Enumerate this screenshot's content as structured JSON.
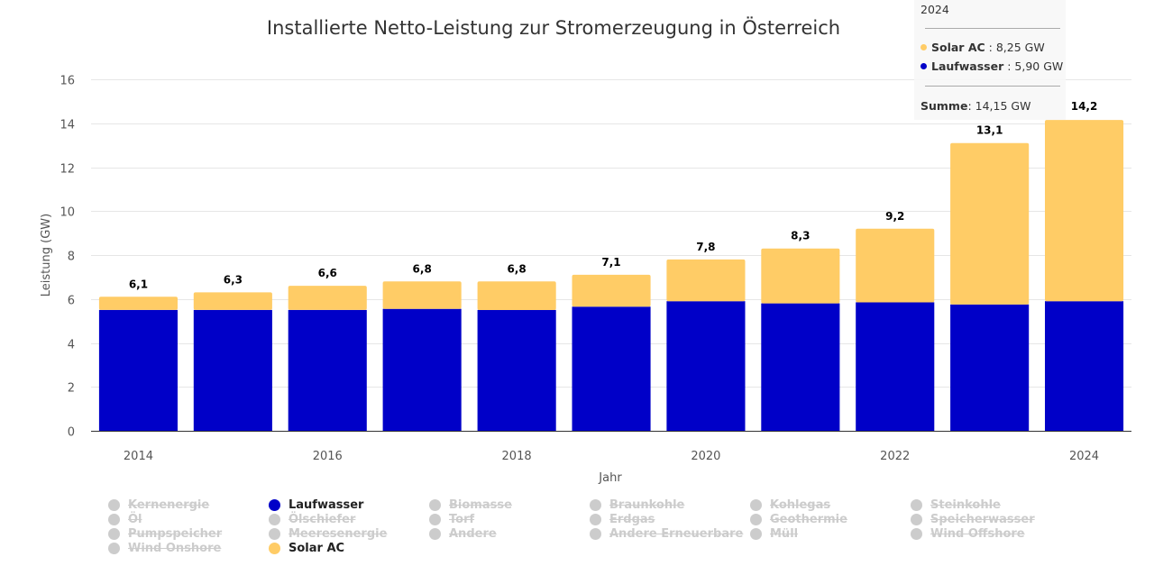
{
  "chart_data": {
    "type": "bar",
    "stacked": true,
    "title": "Installierte Netto-Leistung zur Stromerzeugung in Österreich",
    "xlabel": "Jahr",
    "ylabel": "Leistung (GW)",
    "ylim": [
      0,
      16
    ],
    "yticks": [
      "0",
      "2",
      "4",
      "6",
      "8",
      "10",
      "12",
      "14",
      "16"
    ],
    "ytick_values": [
      0,
      2,
      4,
      6,
      8,
      10,
      12,
      14,
      16
    ],
    "categories": [
      "2014",
      "2015",
      "2016",
      "2017",
      "2018",
      "2019",
      "2020",
      "2021",
      "2022",
      "2023",
      "2024"
    ],
    "xtick_labels": [
      "2014",
      "",
      "2016",
      "",
      "2018",
      "",
      "2020",
      "",
      "2022",
      "",
      "2024"
    ],
    "grid": true,
    "series": [
      {
        "name": "Laufwasser",
        "color": "#0000c8",
        "values": [
          5.5,
          5.5,
          5.5,
          5.55,
          5.5,
          5.65,
          5.9,
          5.8,
          5.85,
          5.75,
          5.9
        ]
      },
      {
        "name": "Solar AC",
        "color": "#ffcc66",
        "values": [
          0.6,
          0.8,
          1.1,
          1.25,
          1.3,
          1.45,
          1.9,
          2.5,
          3.35,
          7.35,
          8.25
        ]
      }
    ],
    "totals": [
      6.1,
      6.3,
      6.6,
      6.8,
      6.8,
      7.1,
      7.8,
      8.3,
      9.2,
      13.1,
      14.2
    ],
    "total_labels": [
      "6,1",
      "6,3",
      "6,6",
      "6,8",
      "6,8",
      "7,1",
      "7,8",
      "8,3",
      "9,2",
      "13,1",
      "14,2"
    ],
    "legend_position": "bottom",
    "legend": [
      {
        "name": "Kernenergie",
        "visible": false
      },
      {
        "name": "Laufwasser",
        "visible": true,
        "color": "#0000c8"
      },
      {
        "name": "Biomasse",
        "visible": false
      },
      {
        "name": "Braunkohle",
        "visible": false
      },
      {
        "name": "Kohlegas",
        "visible": false
      },
      {
        "name": "Steinkohle",
        "visible": false
      },
      {
        "name": "Öl",
        "visible": false
      },
      {
        "name": "Ölschiefer",
        "visible": false
      },
      {
        "name": "Torf",
        "visible": false
      },
      {
        "name": "Erdgas",
        "visible": false
      },
      {
        "name": "Geothermie",
        "visible": false
      },
      {
        "name": "Speicherwasser",
        "visible": false
      },
      {
        "name": "Pumpspeicher",
        "visible": false
      },
      {
        "name": "Meeresenergie",
        "visible": false
      },
      {
        "name": "Andere",
        "visible": false
      },
      {
        "name": "Andere Erneuerbare",
        "visible": false
      },
      {
        "name": "Müll",
        "visible": false
      },
      {
        "name": "Wind Offshore",
        "visible": false
      },
      {
        "name": "Wind Onshore",
        "visible": false
      },
      {
        "name": "Solar AC",
        "visible": true,
        "color": "#ffcc66"
      }
    ]
  },
  "tooltip": {
    "year": "2024",
    "rows": [
      {
        "label": "Solar AC",
        "value": ": 8,25 GW",
        "color": "#ffcc66"
      },
      {
        "label": "Laufwasser",
        "value": ": 5,90 GW",
        "color": "#0000c8"
      }
    ],
    "sum_label": "Summe",
    "sum_value": ": 14,15 GW"
  }
}
